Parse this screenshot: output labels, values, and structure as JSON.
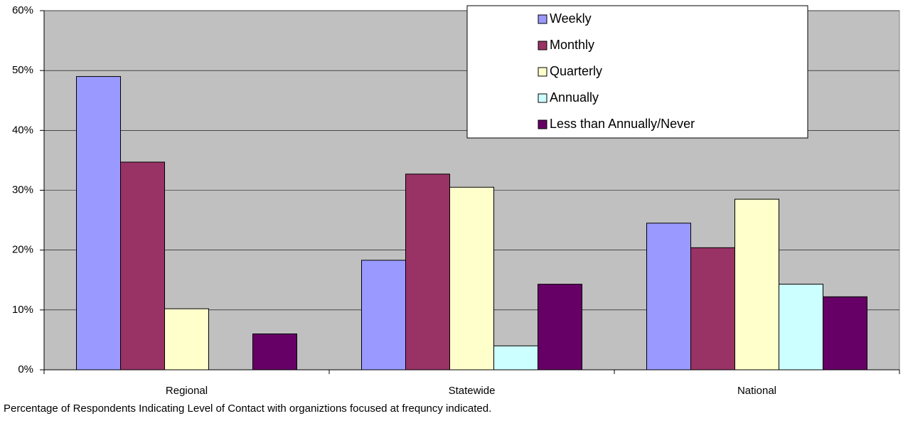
{
  "chart_data": {
    "type": "bar",
    "caption": "Percentage of Respondents Indicating Level of Contact with organiztions focused at frequncy indicated.",
    "categories": [
      "Regional",
      "Statewide",
      "National"
    ],
    "series": [
      {
        "name": "Weekly",
        "color": "#9999ff",
        "values": [
          49,
          18.3,
          24.5
        ]
      },
      {
        "name": "Monthly",
        "color": "#993366",
        "values": [
          34.7,
          32.7,
          20.4
        ]
      },
      {
        "name": "Quarterly",
        "color": "#ffffcc",
        "values": [
          10.2,
          30.5,
          28.5
        ]
      },
      {
        "name": "Annually",
        "color": "#ccffff",
        "values": [
          0,
          4.0,
          14.3
        ]
      },
      {
        "name": "Less than Annually/Never",
        "color": "#660066",
        "values": [
          6.0,
          14.3,
          12.2
        ]
      }
    ],
    "ylim": [
      0,
      60
    ],
    "yticks": [
      {
        "value": 0,
        "label": "0%"
      },
      {
        "value": 10,
        "label": "10%"
      },
      {
        "value": 20,
        "label": "20%"
      },
      {
        "value": 30,
        "label": "30%"
      },
      {
        "value": 40,
        "label": "40%"
      },
      {
        "value": 50,
        "label": "50%"
      },
      {
        "value": 60,
        "label": "60%"
      }
    ],
    "grid": true,
    "background": "#c0c0c0",
    "legend": "top-right"
  }
}
